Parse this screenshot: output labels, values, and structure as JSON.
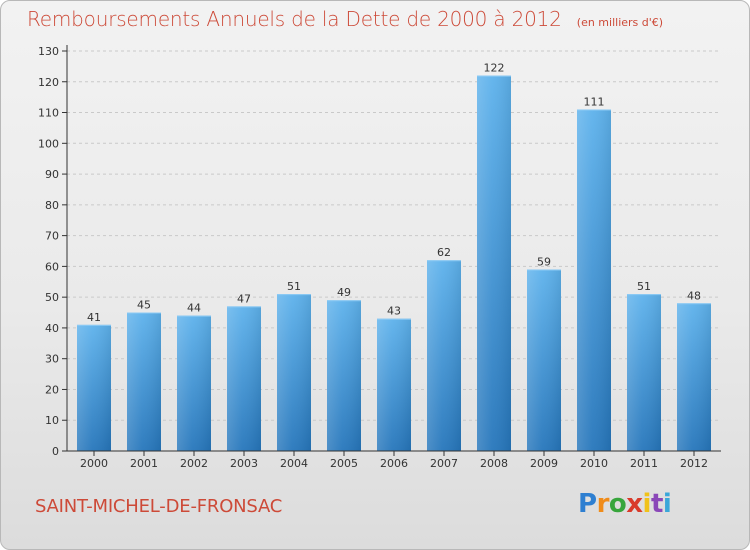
{
  "header": {
    "title": "Remboursements Annuels de la Dette de 2000 à 2012",
    "subtitle": "(en milliers d'€)"
  },
  "footer": {
    "commune": "SAINT-MICHEL-DE-FRONSAC",
    "logo_text": "Proxiti"
  },
  "colors": {
    "title": "#cd4a38",
    "bar_top": "#5aaeea",
    "bar_bottom": "#2a7bc0",
    "axis": "#333333",
    "grid": "#c8c8c8"
  },
  "chart_data": {
    "type": "bar",
    "title": "Remboursements Annuels de la Dette de 2000 à 2012",
    "subtitle": "(en milliers d'€)",
    "xlabel": "",
    "ylabel": "",
    "categories": [
      "2000",
      "2001",
      "2002",
      "2003",
      "2004",
      "2005",
      "2006",
      "2007",
      "2008",
      "2009",
      "2010",
      "2011",
      "2012"
    ],
    "values": [
      41,
      45,
      44,
      47,
      51,
      49,
      43,
      62,
      122,
      59,
      111,
      51,
      48
    ],
    "ylim": [
      0,
      130
    ],
    "yticks": [
      0,
      10,
      20,
      30,
      40,
      50,
      60,
      70,
      80,
      90,
      100,
      110,
      120,
      130
    ],
    "grid": true,
    "legend": "none"
  }
}
